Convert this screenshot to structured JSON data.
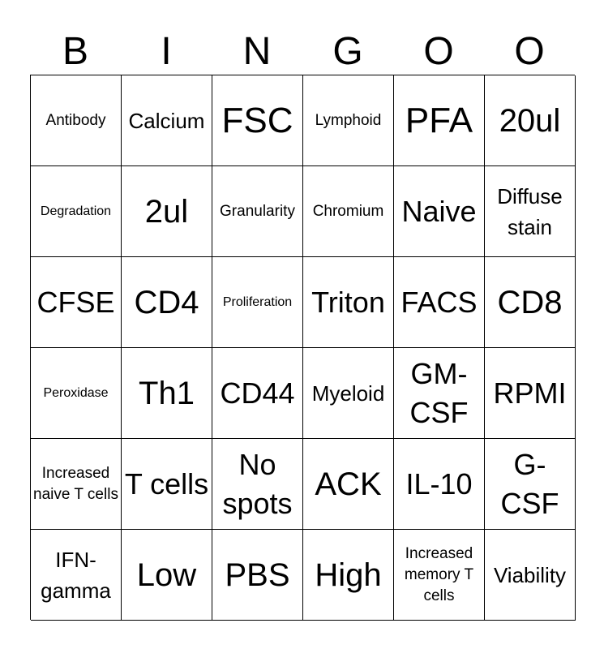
{
  "header": {
    "letters": [
      "B",
      "I",
      "N",
      "G",
      "O",
      "O"
    ]
  },
  "board": {
    "rows": [
      [
        "Antibody",
        "Calcium",
        "FSC",
        "Lymphoid",
        "PFA",
        "20ul"
      ],
      [
        "Degradation",
        "2ul",
        "Granularity",
        "Chromium",
        "Naive",
        "Diffuse stain"
      ],
      [
        "CFSE",
        "CD4",
        "Proliferation",
        "Triton",
        "FACS",
        "CD8"
      ],
      [
        "Peroxidase",
        "Th1",
        "CD44",
        "Myeloid",
        "GM-CSF",
        "RPMI"
      ],
      [
        "Increased naive T cells",
        "T cells",
        "No spots",
        "ACK",
        "IL-10",
        "G-CSF"
      ],
      [
        "IFN-gamma",
        "Low",
        "PBS",
        "High",
        "Increased memory T cells",
        "Viability"
      ]
    ]
  }
}
